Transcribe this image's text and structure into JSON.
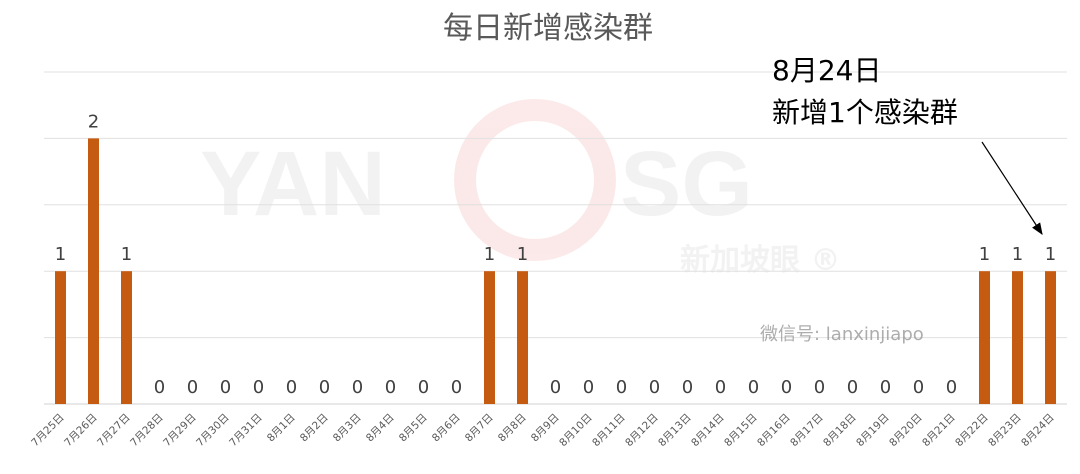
{
  "chart_data": {
    "type": "bar",
    "title": "每日新增感染群",
    "categories": [
      "7月25日",
      "7月26日",
      "7月27日",
      "7月28日",
      "7月29日",
      "7月30日",
      "7月31日",
      "8月1日",
      "8月2日",
      "8月3日",
      "8月4日",
      "8月5日",
      "8月6日",
      "8月7日",
      "8月8日",
      "8月9日",
      "8月10日",
      "8月11日",
      "8月12日",
      "8月13日",
      "8月14日",
      "8月15日",
      "8月16日",
      "8月17日",
      "8月18日",
      "8月19日",
      "8月20日",
      "8月21日",
      "8月22日",
      "8月23日",
      "8月24日"
    ],
    "values": [
      1,
      2,
      1,
      0,
      0,
      0,
      0,
      0,
      0,
      0,
      0,
      0,
      0,
      1,
      1,
      0,
      0,
      0,
      0,
      0,
      0,
      0,
      0,
      0,
      0,
      0,
      0,
      0,
      1,
      1,
      1
    ],
    "xlabel": "",
    "ylabel": "",
    "ylim": [
      0,
      2.5
    ],
    "grid": true,
    "data_labels": true,
    "bar_color": "#C55A11",
    "annotation": {
      "lines": [
        "8月24日",
        "新增1个感染群"
      ],
      "target_category": "8月24日"
    }
  },
  "watermark": {
    "logo": "YAN SG",
    "logo_cn": "新加坡眼 ®",
    "wechat": "微信号: lanxinjiapo"
  }
}
